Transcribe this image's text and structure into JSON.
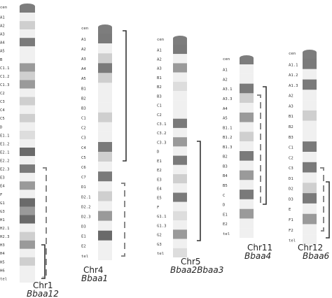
{
  "chromosomes": [
    {
      "id": "chr1",
      "name": "Chr1",
      "locus": "Bbaa12",
      "bands": [
        {
          "label": "cen",
          "shade": "#7a7a7a"
        },
        {
          "label": "A1",
          "shade": "#f0f0f0"
        },
        {
          "label": "A2",
          "shade": "#cfcfcf"
        },
        {
          "label": "A3",
          "shade": "#f0f0f0"
        },
        {
          "label": "A4",
          "shade": "#7a7a7a"
        },
        {
          "label": "A5",
          "shade": "#f0f0f0"
        },
        {
          "label": "B",
          "shade": "#f0f0f0"
        },
        {
          "label": "C1.1",
          "shade": "#9a9a9a"
        },
        {
          "label": "C1.2",
          "shade": "#cfcfcf"
        },
        {
          "label": "C1.3",
          "shade": "#9a9a9a"
        },
        {
          "label": "C2",
          "shade": "#f0f0f0"
        },
        {
          "label": "C3",
          "shade": "#cfcfcf"
        },
        {
          "label": "C4",
          "shade": "#f0f0f0"
        },
        {
          "label": "C5",
          "shade": "#cfcfcf"
        },
        {
          "label": "D",
          "shade": "#f0f0f0"
        },
        {
          "label": "E1.1",
          "shade": "#dddddd"
        },
        {
          "label": "E1.2",
          "shade": "#f0f0f0"
        },
        {
          "label": "E2.1",
          "shade": "#6a6a6a"
        },
        {
          "label": "E2.2",
          "shade": "#f0f0f0"
        },
        {
          "label": "E2.3",
          "shade": "#7a7a7a"
        },
        {
          "label": "E3",
          "shade": "#f0f0f0"
        },
        {
          "label": "E4",
          "shade": "#9a9a9a"
        },
        {
          "label": "F",
          "shade": "#f0f0f0"
        },
        {
          "label": "G1",
          "shade": "#6a6a6a"
        },
        {
          "label": "G3",
          "shade": "#9a9a9a"
        },
        {
          "label": "H1",
          "shade": "#6a6a6a"
        },
        {
          "label": "H2.1",
          "shade": "#f0f0f0"
        },
        {
          "label": "H2.3",
          "shade": "#cfcfcf"
        },
        {
          "label": "H3",
          "shade": "#9a9a9a"
        },
        {
          "label": "H4",
          "shade": "#f0f0f0"
        },
        {
          "label": "H5",
          "shade": "#cfcfcf"
        },
        {
          "label": "H6",
          "shade": "#f0f0f0"
        },
        {
          "label": "tel",
          "shade": "#f0f0f0"
        }
      ],
      "markers": [
        {
          "style": "dashed"
        },
        {
          "style": "solid"
        }
      ]
    },
    {
      "id": "chr4",
      "name": "Chr4",
      "locus": "Bbaa1",
      "bands": [
        {
          "label": "cen",
          "shade": "#7a7a7a"
        },
        {
          "label": "A1",
          "shade": "#7a7a7a"
        },
        {
          "label": "A2",
          "shade": "#f0f0f0"
        },
        {
          "label": "A3",
          "shade": "#cfcfcf"
        },
        {
          "label": "A4",
          "shade": "#7a7a7a"
        },
        {
          "label": "A5",
          "shade": "#cfcfcf"
        },
        {
          "label": "B1",
          "shade": "#f0f0f0"
        },
        {
          "label": "B2",
          "shade": "#f0f0f0"
        },
        {
          "label": "B3",
          "shade": "#f0f0f0"
        },
        {
          "label": "C1",
          "shade": "#cfcfcf"
        },
        {
          "label": "C2",
          "shade": "#f0f0f0"
        },
        {
          "label": "C3",
          "shade": "#f0f0f0"
        },
        {
          "label": "C4",
          "shade": "#7a7a7a"
        },
        {
          "label": "C5",
          "shade": "#cfcfcf"
        },
        {
          "label": "C6",
          "shade": "#f0f0f0"
        },
        {
          "label": "C7",
          "shade": "#7a7a7a"
        },
        {
          "label": "D1",
          "shade": "#f0f0f0"
        },
        {
          "label": "D2.1",
          "shade": "#cfcfcf"
        },
        {
          "label": "D2.2",
          "shade": "#f0f0f0"
        },
        {
          "label": "D2.3",
          "shade": "#9a9a9a"
        },
        {
          "label": "D3",
          "shade": "#f0f0f0"
        },
        {
          "label": "E1",
          "shade": "#6a6a6a"
        },
        {
          "label": "E2",
          "shade": "#f0f0f0"
        },
        {
          "label": "tel",
          "shade": "#f0f0f0"
        }
      ],
      "markers": [
        {
          "style": "solid"
        },
        {
          "style": "dashed"
        }
      ]
    },
    {
      "id": "chr5",
      "name": "Chr5",
      "locus": "Bbaa2Bbaa3",
      "bands": [
        {
          "label": "cen",
          "shade": "#7a7a7a"
        },
        {
          "label": "A1",
          "shade": "#7a7a7a"
        },
        {
          "label": "A2",
          "shade": "#f0f0f0"
        },
        {
          "label": "A3",
          "shade": "#9a9a9a"
        },
        {
          "label": "B1",
          "shade": "#f0f0f0"
        },
        {
          "label": "B2",
          "shade": "#dddddd"
        },
        {
          "label": "B3",
          "shade": "#f0f0f0"
        },
        {
          "label": "C1",
          "shade": "#f0f0f0"
        },
        {
          "label": "C2",
          "shade": "#f0f0f0"
        },
        {
          "label": "C3.1",
          "shade": "#7a7a7a"
        },
        {
          "label": "C3.2",
          "shade": "#f0f0f0"
        },
        {
          "label": "C3.3",
          "shade": "#9a9a9a"
        },
        {
          "label": "D",
          "shade": "#f0f0f0"
        },
        {
          "label": "E1",
          "shade": "#7a7a7a"
        },
        {
          "label": "E2",
          "shade": "#f0f0f0"
        },
        {
          "label": "E3",
          "shade": "#cfcfcf"
        },
        {
          "label": "E4",
          "shade": "#f0f0f0"
        },
        {
          "label": "E5",
          "shade": "#7a7a7a"
        },
        {
          "label": "F",
          "shade": "#f0f0f0"
        },
        {
          "label": "G1.1",
          "shade": "#dddddd"
        },
        {
          "label": "G1.3",
          "shade": "#f0f0f0"
        },
        {
          "label": "G2",
          "shade": "#9a9a9a"
        },
        {
          "label": "G3",
          "shade": "#f0f0f0"
        },
        {
          "label": "tel",
          "shade": "#dddddd"
        }
      ],
      "markers": [
        {
          "style": "solid"
        }
      ]
    },
    {
      "id": "chr11",
      "name": "Chr11",
      "locus": "Bbaa4",
      "bands": [
        {
          "label": "cen",
          "shade": "#7a7a7a"
        },
        {
          "label": "A1",
          "shade": "#f0f0f0"
        },
        {
          "label": "A2",
          "shade": "#f0f0f0"
        },
        {
          "label": "A3.1",
          "shade": "#7a7a7a"
        },
        {
          "label": "A3.3",
          "shade": "#cfcfcf"
        },
        {
          "label": "A4",
          "shade": "#f0f0f0"
        },
        {
          "label": "A5",
          "shade": "#9a9a9a"
        },
        {
          "label": "B1.1",
          "shade": "#f0f0f0"
        },
        {
          "label": "B1.2",
          "shade": "#cfcfcf"
        },
        {
          "label": "B1.3",
          "shade": "#f0f0f0"
        },
        {
          "label": "B2",
          "shade": "#7a7a7a"
        },
        {
          "label": "B3",
          "shade": "#f0f0f0"
        },
        {
          "label": "B4",
          "shade": "#9a9a9a"
        },
        {
          "label": "B5",
          "shade": "#f0f0f0"
        },
        {
          "label": "C",
          "shade": "#7a7a7a"
        },
        {
          "label": "D",
          "shade": "#f0f0f0"
        },
        {
          "label": "E1",
          "shade": "#9a9a9a"
        },
        {
          "label": "E2",
          "shade": "#f0f0f0"
        },
        {
          "label": "tel",
          "shade": "#f0f0f0"
        }
      ],
      "markers": [
        {
          "style": "solid"
        },
        {
          "style": "dashed"
        }
      ]
    },
    {
      "id": "chr12",
      "name": "Chr12",
      "locus": "Bbaa6",
      "bands": [
        {
          "label": "cen",
          "shade": "#7a7a7a"
        },
        {
          "label": "A1.1",
          "shade": "#7a7a7a"
        },
        {
          "label": "A1.2",
          "shade": "#f0f0f0"
        },
        {
          "label": "A1.3",
          "shade": "#7a7a7a"
        },
        {
          "label": "A2",
          "shade": "#f0f0f0"
        },
        {
          "label": "A3",
          "shade": "#f0f0f0"
        },
        {
          "label": "B1",
          "shade": "#cfcfcf"
        },
        {
          "label": "B2",
          "shade": "#f0f0f0"
        },
        {
          "label": "B3",
          "shade": "#f0f0f0"
        },
        {
          "label": "C1",
          "shade": "#7a7a7a"
        },
        {
          "label": "C2",
          "shade": "#f0f0f0"
        },
        {
          "label": "C3",
          "shade": "#7a7a7a"
        },
        {
          "label": "D1",
          "shade": "#f0f0f0"
        },
        {
          "label": "D2",
          "shade": "#cfcfcf"
        },
        {
          "label": "D3",
          "shade": "#7a7a7a"
        },
        {
          "label": "E",
          "shade": "#f0f0f0"
        },
        {
          "label": "F1",
          "shade": "#9a9a9a"
        },
        {
          "label": "F2",
          "shade": "#f0f0f0"
        },
        {
          "label": "tel",
          "shade": "#f0f0f0"
        }
      ],
      "markers": [
        {
          "style": "dashed"
        },
        {
          "style": "solid"
        }
      ]
    }
  ],
  "colors": {
    "cap": "#7d7d7d",
    "bracket": "#333333",
    "dashed_bracket": "#888888"
  }
}
